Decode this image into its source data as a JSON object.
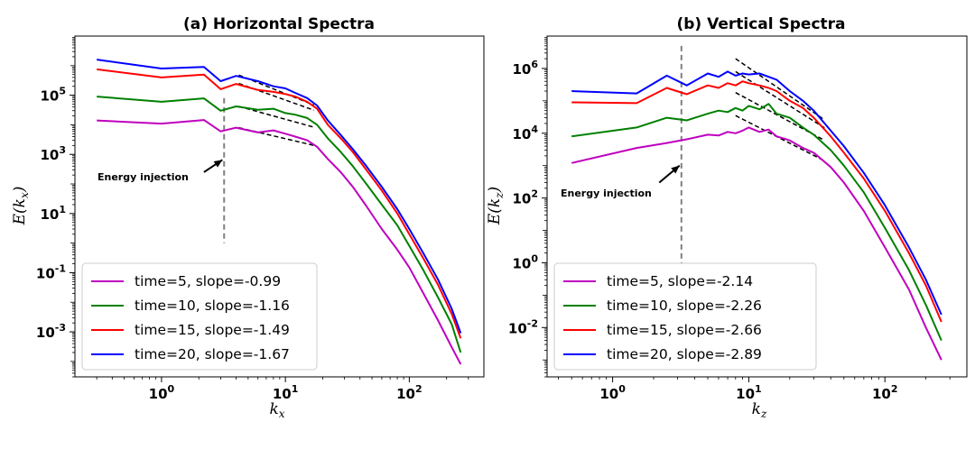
{
  "chart_data": [
    {
      "type": "line",
      "title": "(a) Horizontal Spectra",
      "xlabel": "k_x",
      "ylabel": "E(k_x)",
      "xscale": "log",
      "yscale": "log",
      "xlim": [
        0.2,
        400
      ],
      "ylim": [
        3e-05,
        10000000
      ],
      "xticks": [
        {
          "value": 1,
          "base": "10",
          "exp": "0"
        },
        {
          "value": 10,
          "base": "10",
          "exp": "1"
        },
        {
          "value": 100,
          "base": "10",
          "exp": "2"
        }
      ],
      "yticks": [
        {
          "value": 0.001,
          "base": "10",
          "exp": "-3"
        },
        {
          "value": 0.1,
          "base": "10",
          "exp": "-1"
        },
        {
          "value": 10,
          "base": "10",
          "exp": "1"
        },
        {
          "value": 1000,
          "base": "10",
          "exp": "3"
        },
        {
          "value": 100000,
          "base": "10",
          "exp": "5"
        }
      ],
      "legend_position": "lower-left",
      "annotation": {
        "text": "Energy injection",
        "injection_k": 3.2,
        "arrow_from": [
          2.2,
          250
        ],
        "arrow_to": [
          3.1,
          650
        ]
      },
      "injection_line": {
        "x": 3.2,
        "y_range": [
          1,
          80000
        ]
      },
      "slope_fits": [
        {
          "x0": 4.2,
          "y0": 8000,
          "x1": 17,
          "slope": -0.99
        },
        {
          "x0": 4.2,
          "y0": 42000,
          "x1": 17,
          "slope": -1.16
        },
        {
          "x0": 4.2,
          "y0": 250000,
          "x1": 17,
          "slope": -1.49
        },
        {
          "x0": 4.2,
          "y0": 480000,
          "x1": 17,
          "slope": -1.67
        }
      ],
      "series": [
        {
          "name": "time=5, slope=-0.99",
          "color": "#bf00bf",
          "x": [
            0.3,
            1,
            2.2,
            3,
            4,
            6,
            8,
            10,
            12,
            15,
            18,
            22,
            28,
            35,
            45,
            60,
            80,
            100,
            130,
            170,
            220,
            260
          ],
          "y": [
            14000,
            11000,
            14500,
            6000,
            8000,
            5500,
            6500,
            5000,
            4000,
            3000,
            1800,
            700,
            250,
            80,
            18,
            3,
            0.6,
            0.15,
            0.02,
            0.0025,
            0.0003,
            8e-05
          ]
        },
        {
          "name": "time=10, slope=-1.16",
          "color": "#008000",
          "x": [
            0.3,
            1,
            2.2,
            3,
            4,
            6,
            8,
            10,
            12,
            15,
            18,
            22,
            28,
            35,
            45,
            60,
            80,
            100,
            130,
            170,
            220,
            260
          ],
          "y": [
            90000,
            60000,
            78000,
            30000,
            42000,
            32000,
            35000,
            25000,
            22000,
            17000,
            10000,
            3500,
            1200,
            400,
            100,
            20,
            4,
            0.8,
            0.12,
            0.015,
            0.0018,
            0.0002
          ]
        },
        {
          "name": "time=15, slope=-1.49",
          "color": "#ff0000",
          "x": [
            0.3,
            1,
            2.2,
            3,
            4,
            6,
            8,
            10,
            12,
            15,
            18,
            22,
            28,
            35,
            45,
            60,
            80,
            100,
            130,
            170,
            220,
            260
          ],
          "y": [
            750000,
            400000,
            500000,
            160000,
            240000,
            150000,
            130000,
            110000,
            90000,
            60000,
            35000,
            10000,
            3500,
            1200,
            300,
            60,
            10,
            2,
            0.3,
            0.04,
            0.004,
            0.0006
          ]
        },
        {
          "name": "time=20, slope=-1.67",
          "color": "#0000ff",
          "x": [
            0.3,
            1,
            2.2,
            3,
            4,
            6,
            8,
            10,
            12,
            15,
            18,
            22,
            28,
            35,
            45,
            60,
            80,
            100,
            130,
            170,
            220,
            260
          ],
          "y": [
            1600000,
            800000,
            900000,
            300000,
            450000,
            300000,
            200000,
            170000,
            120000,
            80000,
            45000,
            14000,
            4500,
            1500,
            400,
            80,
            14,
            3,
            0.45,
            0.06,
            0.006,
            0.0009
          ]
        }
      ]
    },
    {
      "type": "line",
      "title": "(b) Vertical Spectra",
      "xlabel": "k_z",
      "ylabel": "E(k_z)",
      "xscale": "log",
      "yscale": "log",
      "xlim": [
        0.33,
        400
      ],
      "ylim": [
        0.0003,
        10000000
      ],
      "xticks": [
        {
          "value": 1,
          "base": "10",
          "exp": "0"
        },
        {
          "value": 10,
          "base": "10",
          "exp": "1"
        },
        {
          "value": 100,
          "base": "10",
          "exp": "2"
        }
      ],
      "yticks": [
        {
          "value": 0.01,
          "base": "10",
          "exp": "-2"
        },
        {
          "value": 1,
          "base": "10",
          "exp": "0"
        },
        {
          "value": 100,
          "base": "10",
          "exp": "2"
        },
        {
          "value": 10000,
          "base": "10",
          "exp": "4"
        },
        {
          "value": 1000000,
          "base": "10",
          "exp": "6"
        }
      ],
      "legend_position": "lower-left",
      "annotation": {
        "text": "Energy injection",
        "injection_k": 3.2,
        "arrow_from": [
          2.2,
          300
        ],
        "arrow_to": [
          3.1,
          1000
        ]
      },
      "injection_line": {
        "x": 3.2,
        "y_range": [
          1,
          5000000
        ]
      },
      "slope_fits": [
        {
          "x0": 8,
          "y0": 35000,
          "x1": 36,
          "slope": -2.14
        },
        {
          "x0": 8,
          "y0": 180000,
          "x1": 36,
          "slope": -2.26
        },
        {
          "x0": 8,
          "y0": 800000,
          "x1": 36,
          "slope": -2.66
        },
        {
          "x0": 8,
          "y0": 2000000,
          "x1": 36,
          "slope": -2.89
        }
      ],
      "series": [
        {
          "name": "time=5, slope=-2.14",
          "color": "#bf00bf",
          "x": [
            0.5,
            1.5,
            2.5,
            3.5,
            5,
            6,
            7,
            8,
            9,
            10,
            12,
            14,
            16,
            20,
            25,
            30,
            40,
            50,
            70,
            100,
            150,
            200,
            260
          ],
          "y": [
            1200,
            3500,
            5000,
            6500,
            9000,
            8500,
            11000,
            10000,
            12000,
            15000,
            11000,
            13000,
            8000,
            6000,
            3500,
            2500,
            900,
            300,
            40,
            3,
            0.15,
            0.01,
            0.001
          ]
        },
        {
          "name": "time=10, slope=-2.26",
          "color": "#008000",
          "x": [
            0.5,
            1.5,
            2.5,
            3.5,
            5,
            6,
            7,
            8,
            9,
            10,
            12,
            14,
            16,
            20,
            25,
            30,
            40,
            50,
            70,
            100,
            150,
            200,
            260
          ],
          "y": [
            8000,
            15000,
            30000,
            25000,
            40000,
            50000,
            45000,
            60000,
            50000,
            70000,
            55000,
            80000,
            40000,
            30000,
            15000,
            9000,
            3000,
            1000,
            150,
            12,
            0.6,
            0.05,
            0.004
          ]
        },
        {
          "name": "time=15, slope=-2.66",
          "color": "#ff0000",
          "x": [
            0.5,
            1.5,
            2.5,
            3.5,
            5,
            6,
            7,
            8,
            9,
            10,
            12,
            14,
            16,
            20,
            25,
            30,
            40,
            50,
            70,
            100,
            150,
            200,
            260
          ],
          "y": [
            90000,
            85000,
            250000,
            160000,
            300000,
            250000,
            350000,
            300000,
            400000,
            350000,
            300000,
            250000,
            200000,
            100000,
            60000,
            30000,
            8000,
            2500,
            400,
            40,
            2,
            0.2,
            0.015
          ]
        },
        {
          "name": "time=20, slope=-2.89",
          "color": "#0000ff",
          "x": [
            0.5,
            1.5,
            2.5,
            3.5,
            5,
            6,
            7,
            8,
            9,
            10,
            12,
            14,
            16,
            20,
            25,
            30,
            40,
            50,
            70,
            100,
            150,
            200,
            260
          ],
          "y": [
            200000,
            170000,
            600000,
            300000,
            700000,
            550000,
            800000,
            600000,
            700000,
            650000,
            700000,
            550000,
            450000,
            200000,
            100000,
            50000,
            12000,
            4000,
            600,
            60,
            3,
            0.3,
            0.025
          ]
        }
      ]
    }
  ]
}
